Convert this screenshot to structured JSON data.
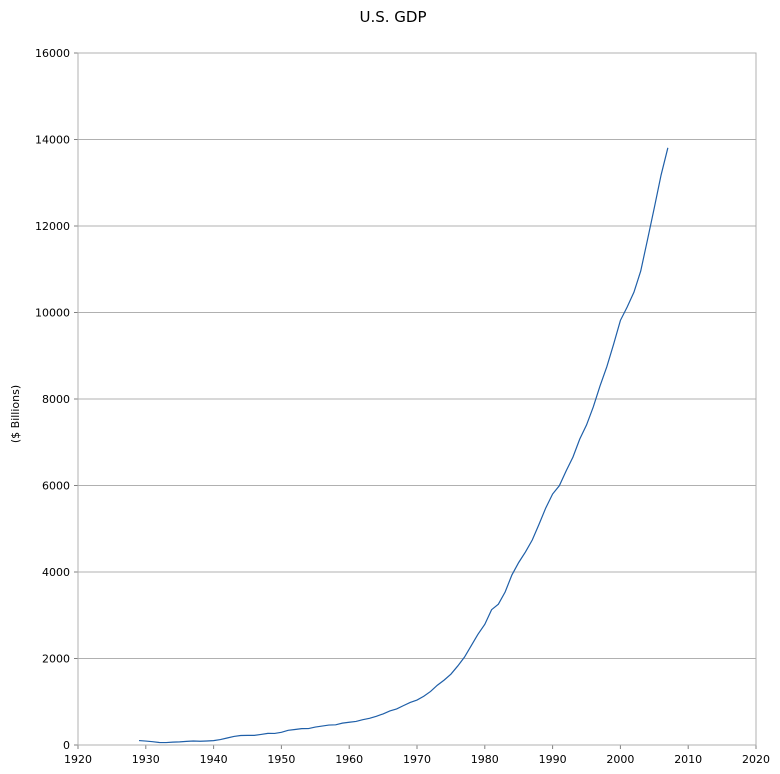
{
  "chart_data": {
    "type": "line",
    "title": "U.S. GDP",
    "xlabel": "",
    "ylabel": "($ Billions)",
    "xlim": [
      1920,
      2020
    ],
    "ylim": [
      0,
      16000
    ],
    "xticks": [
      "1920",
      "1930",
      "1940",
      "1950",
      "1960",
      "1970",
      "1980",
      "1990",
      "2000",
      "2010",
      "2020"
    ],
    "yticks": [
      "0",
      "2000",
      "4000",
      "6000",
      "8000",
      "10000",
      "12000",
      "14000",
      "16000"
    ],
    "grid": true,
    "series": [
      {
        "name": "",
        "color": "#1f5fa8",
        "x": [
          1929,
          1930,
          1931,
          1932,
          1933,
          1934,
          1935,
          1936,
          1937,
          1938,
          1939,
          1940,
          1941,
          1942,
          1943,
          1944,
          1945,
          1946,
          1947,
          1948,
          1949,
          1950,
          1951,
          1952,
          1953,
          1954,
          1955,
          1956,
          1957,
          1958,
          1959,
          1960,
          1961,
          1962,
          1963,
          1964,
          1965,
          1966,
          1967,
          1968,
          1969,
          1970,
          1971,
          1972,
          1973,
          1974,
          1975,
          1976,
          1977,
          1978,
          1979,
          1980,
          1981,
          1982,
          1983,
          1984,
          1985,
          1986,
          1987,
          1988,
          1989,
          1990,
          1991,
          1992,
          1993,
          1994,
          1995,
          1996,
          1997,
          1998,
          1999,
          2000,
          2001,
          2002,
          2003,
          2004,
          2005,
          2006,
          2007
        ],
        "y": [
          103,
          91,
          76,
          58,
          56,
          66,
          73,
          84,
          92,
          86,
          92,
          101,
          126,
          162,
          198,
          219,
          223,
          222,
          244,
          269,
          267,
          294,
          339,
          358,
          379,
          380,
          415,
          438,
          461,
          467,
          506,
          526,
          544,
          585,
          617,
          664,
          719,
          788,
          833,
          910,
          985,
          1039,
          1127,
          1238,
          1382,
          1500,
          1638,
          1825,
          2031,
          2295,
          2563,
          2790,
          3128,
          3255,
          3537,
          3933,
          4220,
          4463,
          4740,
          5104,
          5484,
          5803,
          5996,
          6338,
          6657,
          7072,
          7398,
          7817,
          8304,
          8747,
          9268,
          9817,
          10128,
          10470,
          10961,
          11686,
          12422,
          13178,
          13808
        ]
      }
    ]
  }
}
